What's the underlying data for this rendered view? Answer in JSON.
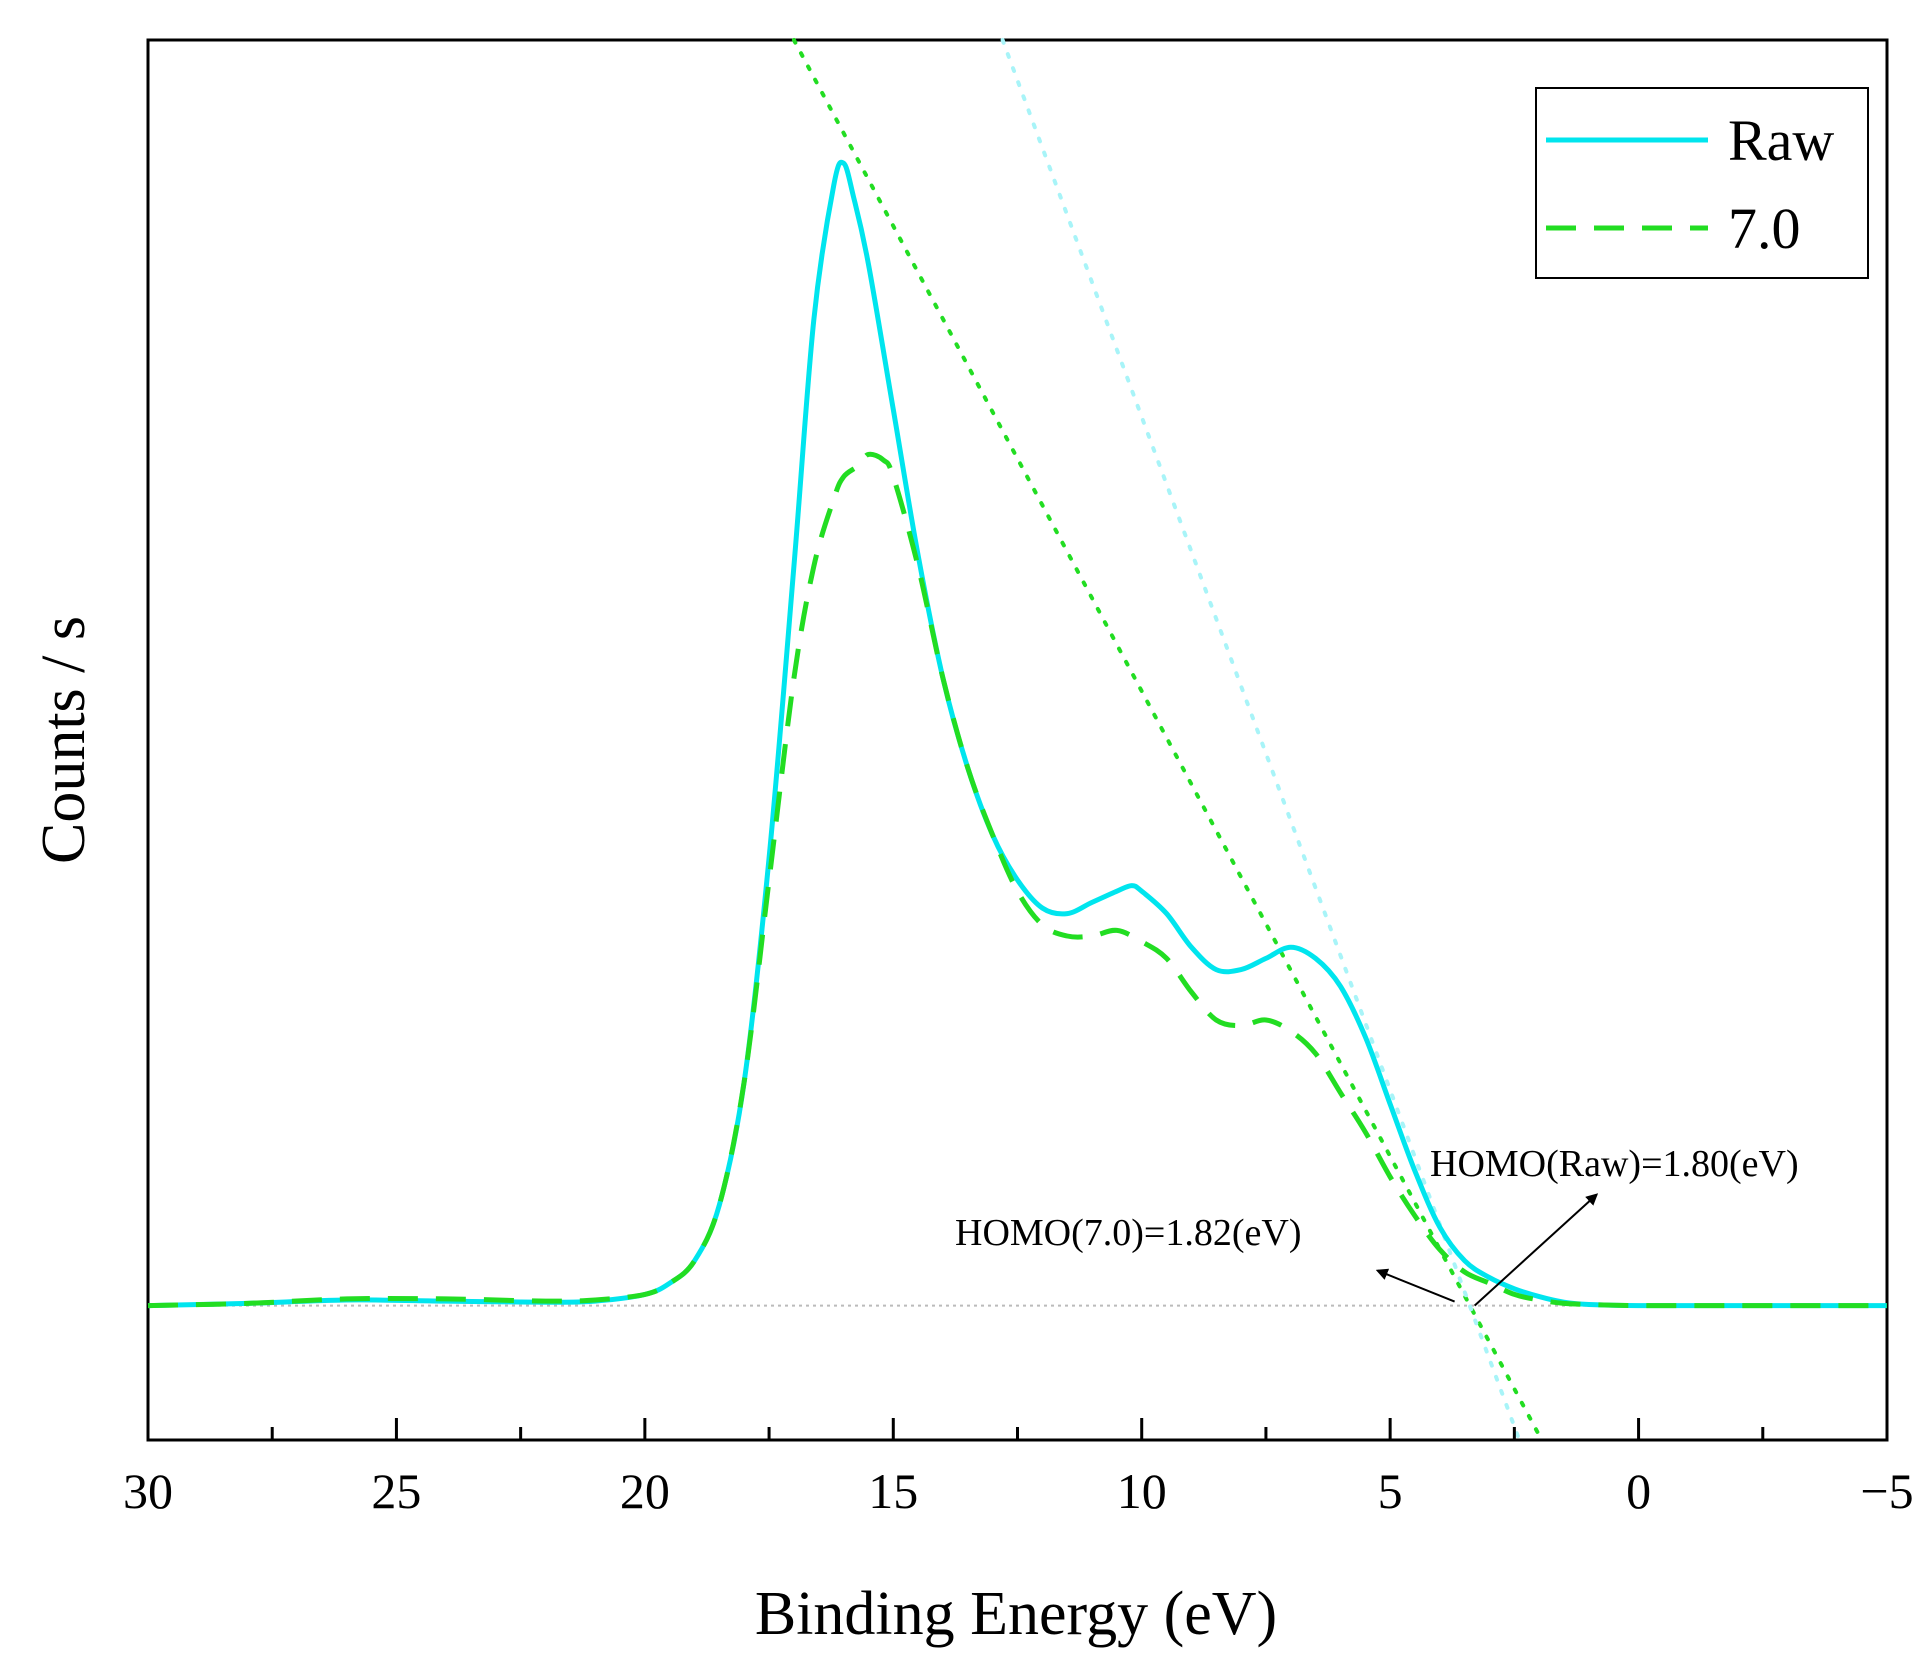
{
  "chart_data": {
    "type": "line",
    "title": "",
    "xlabel": "Binding Energy (eV)",
    "ylabel": "Counts / s",
    "xlim": [
      30,
      -5
    ],
    "ylim": [
      -0.12,
      1.13
    ],
    "x_ticks": [
      30,
      25,
      20,
      15,
      10,
      5,
      0,
      -5
    ],
    "x_tick_labels": [
      "30",
      "25",
      "20",
      "15",
      "10",
      "5",
      "0",
      "−5"
    ],
    "grid": false,
    "legend_position": "top-right",
    "colors": {
      "raw": "#00e5ee",
      "sample": "#22dd22",
      "baseline": "#bbbbbb",
      "arrow": "#000000"
    },
    "series": [
      {
        "name": "Raw",
        "style": "solid",
        "x": [
          30,
          28,
          26,
          24,
          22,
          21,
          20,
          19.5,
          19,
          18.5,
          18,
          17.5,
          17,
          16.6,
          16.2,
          16.0,
          15.8,
          15.5,
          15,
          14.5,
          14,
          13.5,
          13,
          12.5,
          12,
          11.5,
          11,
          10.5,
          10.2,
          10,
          9.5,
          9,
          8.5,
          8,
          7.5,
          7,
          6.5,
          6,
          5.5,
          5,
          4.5,
          4,
          3.5,
          3,
          2.5,
          2,
          1.5,
          1,
          0,
          -2,
          -5
        ],
        "y": [
          0.0,
          0.002,
          0.005,
          0.004,
          0.003,
          0.004,
          0.01,
          0.02,
          0.04,
          0.09,
          0.2,
          0.4,
          0.66,
          0.88,
          1.0,
          1.02,
          0.99,
          0.93,
          0.8,
          0.67,
          0.56,
          0.48,
          0.42,
          0.38,
          0.355,
          0.35,
          0.36,
          0.37,
          0.375,
          0.37,
          0.35,
          0.32,
          0.3,
          0.3,
          0.31,
          0.32,
          0.31,
          0.285,
          0.24,
          0.18,
          0.12,
          0.07,
          0.04,
          0.025,
          0.015,
          0.008,
          0.003,
          0.001,
          0.0,
          0.0,
          0.0
        ]
      },
      {
        "name": "7.0",
        "style": "dashed",
        "x": [
          30,
          28,
          26,
          24,
          22,
          21,
          20,
          19.5,
          19,
          18.5,
          18,
          17.5,
          17,
          16.6,
          16.2,
          16.0,
          15.7,
          15.5,
          15.2,
          15,
          14.5,
          14,
          13.5,
          13,
          12.5,
          12,
          11.5,
          11,
          10.5,
          10,
          9.5,
          9,
          8.5,
          8,
          7.5,
          7,
          6.5,
          6,
          5.5,
          5,
          4.5,
          4,
          3.5,
          3,
          2.5,
          2,
          1.5,
          1,
          0,
          -2,
          -5
        ],
        "y": [
          0.0,
          0.002,
          0.006,
          0.006,
          0.004,
          0.005,
          0.01,
          0.02,
          0.04,
          0.09,
          0.2,
          0.38,
          0.56,
          0.66,
          0.72,
          0.74,
          0.75,
          0.76,
          0.755,
          0.74,
          0.66,
          0.56,
          0.48,
          0.42,
          0.37,
          0.34,
          0.33,
          0.33,
          0.335,
          0.325,
          0.31,
          0.28,
          0.255,
          0.25,
          0.255,
          0.245,
          0.225,
          0.19,
          0.155,
          0.115,
          0.08,
          0.05,
          0.03,
          0.02,
          0.01,
          0.005,
          0.002,
          0.001,
          0.0,
          0.0,
          0.0
        ]
      }
    ],
    "fit_lines": [
      {
        "series": "7.0",
        "x": [
          17.0,
          1.95
        ],
        "y": [
          1.13,
          -0.12
        ]
      },
      {
        "series": "Raw",
        "x": [
          12.8,
          2.4
        ],
        "y": [
          1.13,
          -0.12
        ]
      }
    ],
    "baseline": {
      "y": 0.0
    },
    "annotations": [
      {
        "text": "HOMO(Raw)=1.80(eV)",
        "target_x": 3.3,
        "target_y": 0.0
      },
      {
        "text": "HOMO(7.0)=1.82(eV)",
        "target_x": 3.3,
        "target_y": 0.0
      }
    ]
  }
}
